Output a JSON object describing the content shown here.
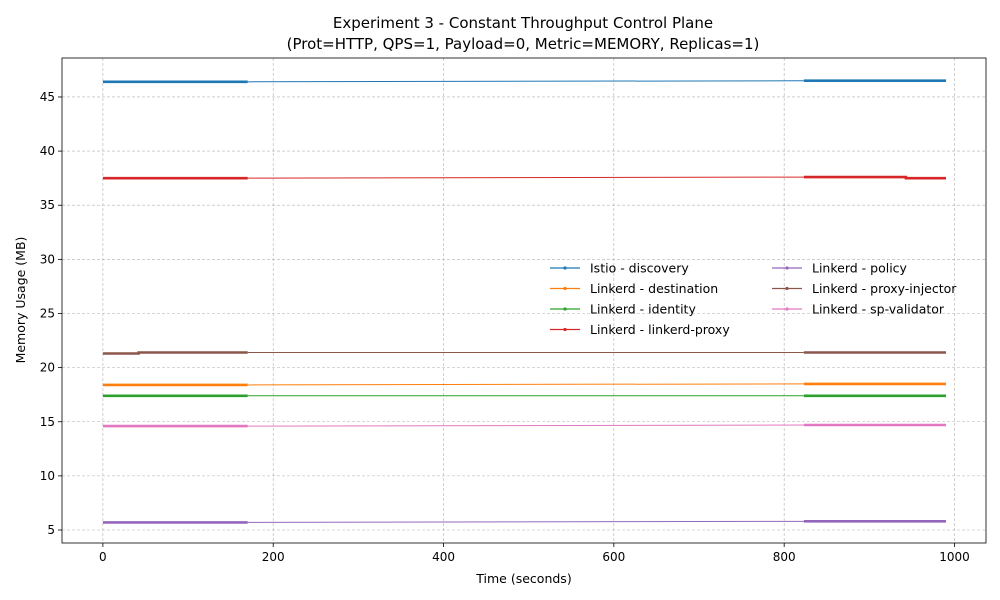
{
  "chart_data": {
    "type": "line",
    "title": "Experiment 3 - Constant Throughput Control Plane",
    "subtitle": "(Prot=HTTP, QPS=1, Payload=0, Metric=MEMORY, Replicas=1)",
    "xlabel": "Time (seconds)",
    "ylabel": "Memory Usage (MB)",
    "xlim": [
      -48,
      1037
    ],
    "ylim": [
      3.8,
      48.6
    ],
    "xticks": [
      0,
      200,
      400,
      600,
      800,
      1000
    ],
    "yticks": [
      5,
      10,
      15,
      20,
      25,
      30,
      35,
      40,
      45
    ],
    "grid": true,
    "legend_position": "center-right",
    "legend_columns": 2,
    "series": [
      {
        "name": "Istio - discovery",
        "color": "#1f77b4",
        "segments": [
          {
            "x": [
              0,
              170
            ],
            "y": [
              46.4,
              46.4
            ]
          },
          {
            "x": [
              823,
              990
            ],
            "y": [
              46.5,
              46.5
            ]
          }
        ]
      },
      {
        "name": "Linkerd - destination",
        "color": "#ff7f0e",
        "segments": [
          {
            "x": [
              0,
              170
            ],
            "y": [
              18.4,
              18.4
            ]
          },
          {
            "x": [
              823,
              990
            ],
            "y": [
              18.5,
              18.5
            ]
          }
        ]
      },
      {
        "name": "Linkerd - identity",
        "color": "#2ca02c",
        "segments": [
          {
            "x": [
              0,
              170
            ],
            "y": [
              17.4,
              17.4
            ]
          },
          {
            "x": [
              823,
              990
            ],
            "y": [
              17.4,
              17.4
            ]
          }
        ]
      },
      {
        "name": "Linkerd - linkerd-proxy",
        "color": "#d62728",
        "segments": [
          {
            "x": [
              0,
              170
            ],
            "y": [
              37.5,
              37.5
            ]
          },
          {
            "x": [
              823,
              943,
              943,
              990
            ],
            "y": [
              37.6,
              37.6,
              37.5,
              37.5
            ]
          }
        ]
      },
      {
        "name": "Linkerd - policy",
        "color": "#9467bd",
        "segments": [
          {
            "x": [
              0,
              170
            ],
            "y": [
              5.7,
              5.7
            ]
          },
          {
            "x": [
              823,
              990
            ],
            "y": [
              5.8,
              5.8
            ]
          }
        ]
      },
      {
        "name": "Linkerd - proxy-injector",
        "color": "#8c564b",
        "segments": [
          {
            "x": [
              0,
              42,
              42,
              170
            ],
            "y": [
              21.3,
              21.3,
              21.4,
              21.4
            ]
          },
          {
            "x": [
              823,
              990
            ],
            "y": [
              21.4,
              21.4
            ]
          }
        ]
      },
      {
        "name": "Linkerd - sp-validator",
        "color": "#e377c2",
        "segments": [
          {
            "x": [
              0,
              170
            ],
            "y": [
              14.6,
              14.6
            ]
          },
          {
            "x": [
              823,
              990
            ],
            "y": [
              14.7,
              14.7
            ]
          }
        ]
      }
    ]
  }
}
